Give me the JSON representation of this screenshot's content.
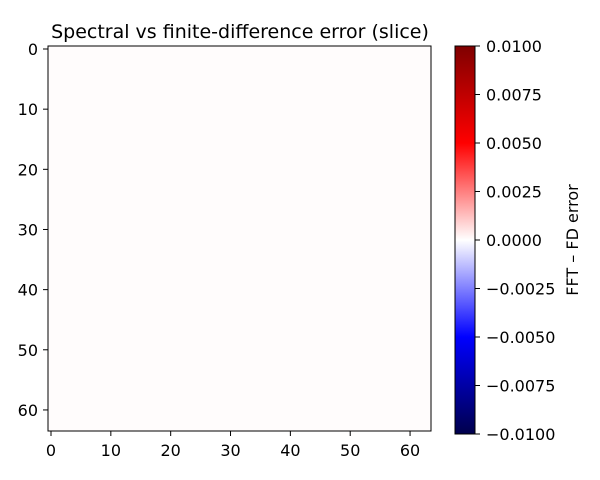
{
  "chart_data": {
    "type": "heatmap",
    "title": "Spectral vs finite-difference error (slice)",
    "xlabel": "",
    "ylabel": "",
    "xlim": [
      -0.5,
      63.5
    ],
    "ylim": [
      63.5,
      -0.5
    ],
    "x_ticks": [
      0,
      10,
      20,
      30,
      40,
      50,
      60
    ],
    "y_ticks": [
      0,
      10,
      20,
      30,
      40,
      50,
      60
    ],
    "grid": false,
    "data_shape": [
      64,
      64
    ],
    "value_estimate": 3e-05,
    "fill_color": "#fffcfc",
    "colormap": "seismic",
    "colorbar": {
      "label": "FFT – FD error",
      "vmin": -0.01,
      "vmax": 0.01,
      "ticks": [
        0.01,
        0.0075,
        0.005,
        0.0025,
        0.0,
        -0.0025,
        -0.005,
        -0.0075,
        -0.01
      ],
      "tick_labels": [
        "0.0100",
        "0.0075",
        "0.0050",
        "0.0025",
        "0.0000",
        "−0.0025",
        "−0.0050",
        "−0.0075",
        "−0.0100"
      ],
      "stops": [
        "#00004c",
        "#0000ff",
        "#ffffff",
        "#ff0000",
        "#7f0000"
      ]
    }
  }
}
